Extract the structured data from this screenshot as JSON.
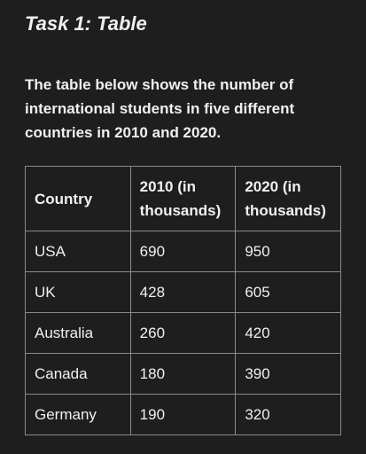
{
  "header": {
    "title": "Task 1: Table"
  },
  "description": "The table below shows the number of international students in five different countries in 2010 and 2020.",
  "table": {
    "columns": [
      "Country",
      "2010 (in thousands)",
      "2020 (in thousands)"
    ],
    "rows": [
      [
        "USA",
        690,
        950
      ],
      [
        "UK",
        428,
        605
      ],
      [
        "Australia",
        260,
        420
      ],
      [
        "Canada",
        180,
        390
      ],
      [
        "Germany",
        190,
        320
      ]
    ]
  }
}
